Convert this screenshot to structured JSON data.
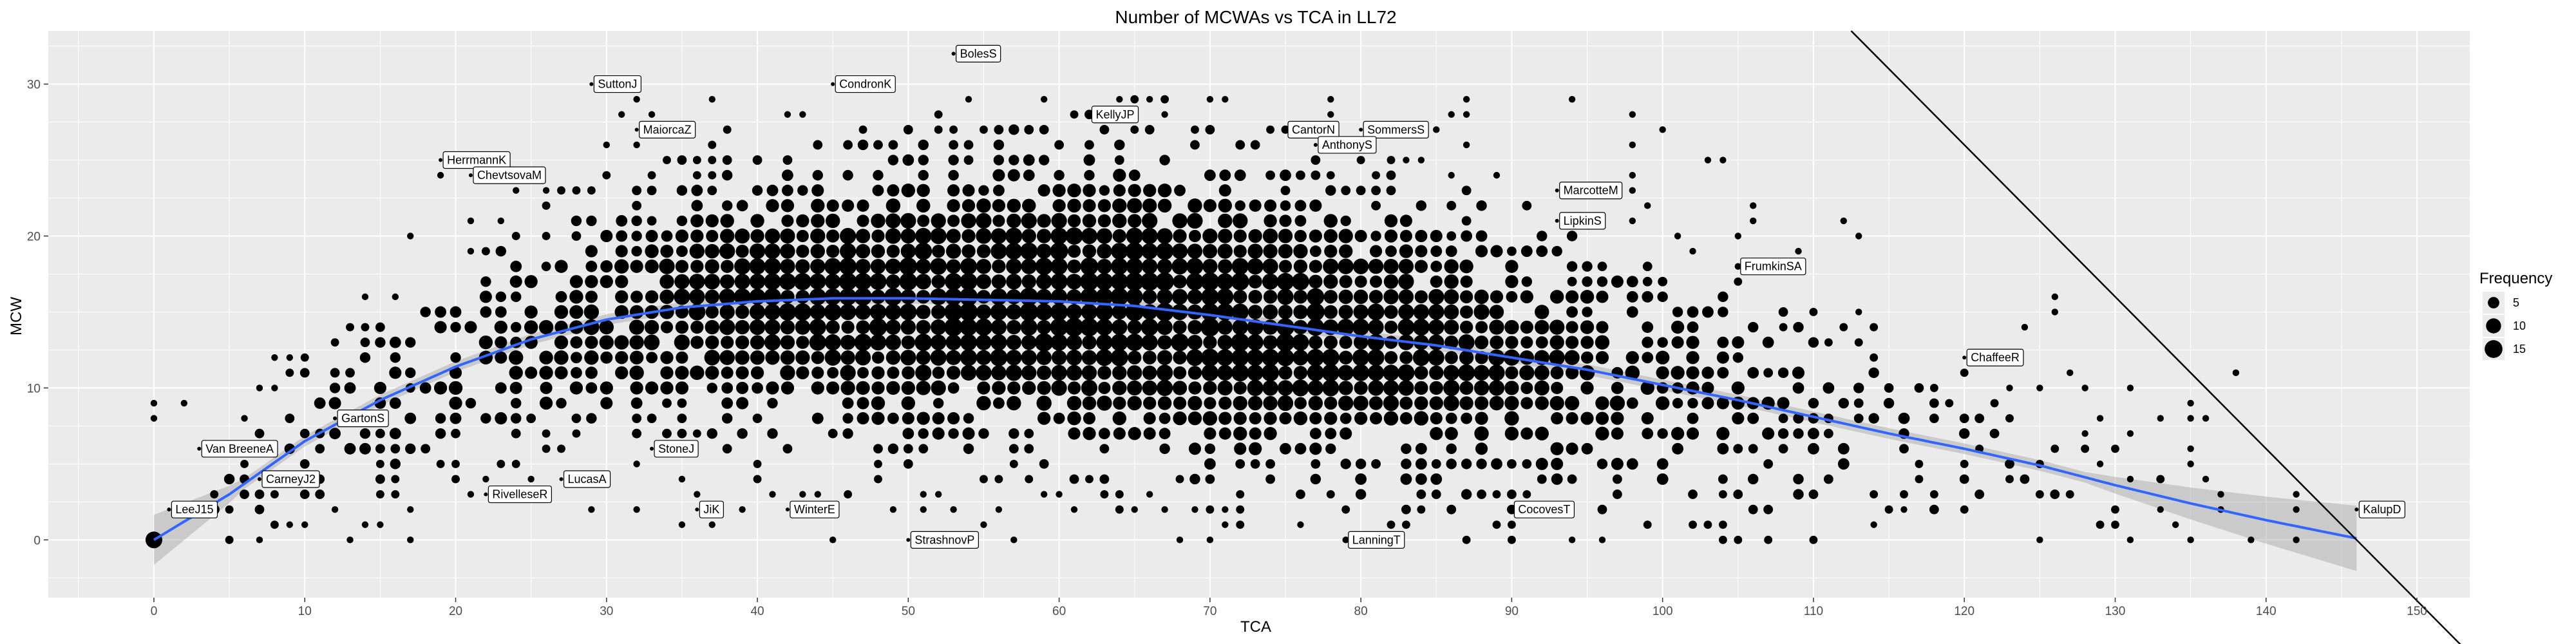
{
  "chart_data": {
    "type": "scatter",
    "title": "Number of MCWAs vs TCA in LL72",
    "xlabel": "TCA",
    "ylabel": "MCW",
    "xlim": [
      -7,
      153.5
    ],
    "ylim": [
      -3.8,
      33.5
    ],
    "x_ticks": [
      0,
      10,
      20,
      30,
      40,
      50,
      60,
      70,
      80,
      90,
      100,
      110,
      120,
      130,
      140,
      150
    ],
    "y_ticks": [
      0,
      10,
      20,
      30
    ],
    "grid": true,
    "legend": {
      "title": "Frequency",
      "position": "right",
      "entries": [
        {
          "label": "5",
          "size": 5
        },
        {
          "label": "10",
          "size": 10
        },
        {
          "label": "15",
          "size": 15
        }
      ]
    },
    "smooth_fit": [
      [
        0,
        0
      ],
      [
        5,
        3
      ],
      [
        10,
        6.5
      ],
      [
        15,
        9.2
      ],
      [
        20,
        11.4
      ],
      [
        25,
        13.2
      ],
      [
        30,
        14.5
      ],
      [
        35,
        15.3
      ],
      [
        40,
        15.7
      ],
      [
        45,
        15.9
      ],
      [
        50,
        15.9
      ],
      [
        55,
        15.8
      ],
      [
        60,
        15.7
      ],
      [
        65,
        15.4
      ],
      [
        70,
        14.8
      ],
      [
        75,
        14.1
      ],
      [
        80,
        13.4
      ],
      [
        85,
        12.8
      ],
      [
        90,
        12.0
      ],
      [
        95,
        11.2
      ],
      [
        100,
        10.2
      ],
      [
        105,
        9.2
      ],
      [
        110,
        8.1
      ],
      [
        115,
        7.0
      ],
      [
        120,
        6.0
      ],
      [
        125,
        4.9
      ],
      [
        130,
        3.6
      ],
      [
        135,
        2.4
      ],
      [
        140,
        1.3
      ],
      [
        146,
        0.1
      ]
    ],
    "reference_line": {
      "slope": -1,
      "intercept": 146
    },
    "labeled_points": [
      {
        "name": "BolesS",
        "x": 53,
        "y": 32
      },
      {
        "name": "SuttonJ",
        "x": 29,
        "y": 30
      },
      {
        "name": "CondronK",
        "x": 45,
        "y": 30
      },
      {
        "name": "KellyJP",
        "x": 62,
        "y": 28
      },
      {
        "name": "MaiorcaZ",
        "x": 32,
        "y": 27
      },
      {
        "name": "CantorN",
        "x": 75,
        "y": 27
      },
      {
        "name": "SommersS",
        "x": 80,
        "y": 27
      },
      {
        "name": "AnthonyS",
        "x": 77,
        "y": 26
      },
      {
        "name": "HerrmannK",
        "x": 19,
        "y": 25
      },
      {
        "name": "ChevtsovaM",
        "x": 21,
        "y": 24
      },
      {
        "name": "MarcotteM",
        "x": 93,
        "y": 23
      },
      {
        "name": "LipkinS",
        "x": 93,
        "y": 21
      },
      {
        "name": "FrumkinSA",
        "x": 105,
        "y": 18
      },
      {
        "name": "ChaffeeR",
        "x": 120,
        "y": 12
      },
      {
        "name": "GartonS",
        "x": 12,
        "y": 8
      },
      {
        "name": "Van BreeneA",
        "x": 3,
        "y": 6
      },
      {
        "name": "StoneJ",
        "x": 33,
        "y": 6
      },
      {
        "name": "CarneyJ2",
        "x": 7,
        "y": 4
      },
      {
        "name": "LucasA",
        "x": 27,
        "y": 4
      },
      {
        "name": "RivelleseR",
        "x": 22,
        "y": 3
      },
      {
        "name": "LeeJ15",
        "x": 1,
        "y": 2
      },
      {
        "name": "JiK",
        "x": 36,
        "y": 2
      },
      {
        "name": "WinterE",
        "x": 42,
        "y": 2
      },
      {
        "name": "CocovesT",
        "x": 90,
        "y": 2
      },
      {
        "name": "KalupD",
        "x": 146,
        "y": 2
      },
      {
        "name": "StrashnovP",
        "x": 50,
        "y": 0
      },
      {
        "name": "LanningT",
        "x": 79,
        "y": 0
      }
    ],
    "frequency_cloud": {
      "description_ref": "bubble field of x (TCA) by y (MCW) counts; sizes are Frequency",
      "x_range": [
        0,
        142
      ],
      "y_range": [
        0,
        29
      ],
      "peak_frequency": 15
    }
  }
}
